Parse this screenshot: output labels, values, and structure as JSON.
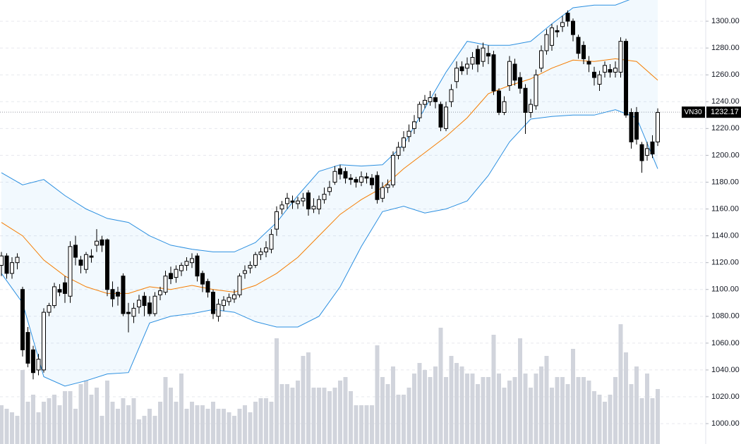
{
  "chart_data": {
    "type": "candlestick",
    "ylim": [
      984.8,
      1315.8
    ],
    "yticks": [
      {
        "value": 1000,
        "label": "1000.00"
      },
      {
        "value": 1020,
        "label": "1020.00"
      },
      {
        "value": 1040,
        "label": "1040.00"
      },
      {
        "value": 1060,
        "label": "1060.00"
      },
      {
        "value": 1080,
        "label": "1080.00"
      },
      {
        "value": 1100,
        "label": "1100.00"
      },
      {
        "value": 1120,
        "label": "1120.00"
      },
      {
        "value": 1140,
        "label": "1140.00"
      },
      {
        "value": 1160,
        "label": "1160.00"
      },
      {
        "value": 1180,
        "label": "1180.00"
      },
      {
        "value": 1200,
        "label": "1200.00"
      },
      {
        "value": 1220,
        "label": "1220.00"
      },
      {
        "value": 1240,
        "label": "1240.00"
      },
      {
        "value": 1260,
        "label": "1260.00"
      },
      {
        "value": 1280,
        "label": "1280.00"
      },
      {
        "value": 1300,
        "label": "1300.00"
      }
    ],
    "grid": true,
    "up_color": "#ffffff",
    "down_color": "#000000",
    "ohlc": [
      [
        1118,
        1128,
        1110,
        1125
      ],
      [
        1125,
        1127,
        1108,
        1112
      ],
      [
        1112,
        1124,
        1108,
        1120
      ],
      [
        1120,
        1127,
        1115,
        1124
      ],
      [
        1100,
        1102,
        1050,
        1055
      ],
      [
        1068,
        1072,
        1042,
        1045
      ],
      [
        1055,
        1058,
        1033,
        1038
      ],
      [
        1040,
        1052,
        1036,
        1048
      ],
      [
        1040,
        1086,
        1038,
        1083
      ],
      [
        1083,
        1090,
        1080,
        1088
      ],
      [
        1088,
        1105,
        1086,
        1102
      ],
      [
        1100,
        1104,
        1095,
        1098
      ],
      [
        1105,
        1110,
        1090,
        1097
      ],
      [
        1095,
        1136,
        1090,
        1132
      ],
      [
        1133,
        1140,
        1118,
        1124
      ],
      [
        1122,
        1125,
        1112,
        1118
      ],
      [
        1115,
        1128,
        1112,
        1126
      ],
      [
        1125,
        1130,
        1120,
        1124
      ],
      [
        1133,
        1145,
        1128,
        1136
      ],
      [
        1137,
        1140,
        1128,
        1133
      ],
      [
        1137,
        1138,
        1095,
        1100
      ],
      [
        1100,
        1106,
        1087,
        1093
      ],
      [
        1098,
        1102,
        1088,
        1095
      ],
      [
        1110,
        1112,
        1080,
        1082
      ],
      [
        1083,
        1090,
        1068,
        1082
      ],
      [
        1080,
        1090,
        1075,
        1086
      ],
      [
        1087,
        1096,
        1082,
        1092
      ],
      [
        1095,
        1098,
        1080,
        1088
      ],
      [
        1090,
        1095,
        1080,
        1082
      ],
      [
        1082,
        1098,
        1080,
        1095
      ],
      [
        1096,
        1102,
        1092,
        1099
      ],
      [
        1098,
        1114,
        1096,
        1110
      ],
      [
        1112,
        1117,
        1104,
        1108
      ],
      [
        1109,
        1118,
        1105,
        1115
      ],
      [
        1114,
        1120,
        1110,
        1118
      ],
      [
        1118,
        1124,
        1114,
        1121
      ],
      [
        1120,
        1127,
        1116,
        1123
      ],
      [
        1125,
        1127,
        1106,
        1110
      ],
      [
        1112,
        1114,
        1098,
        1104
      ],
      [
        1106,
        1108,
        1094,
        1098
      ],
      [
        1098,
        1100,
        1078,
        1082
      ],
      [
        1080,
        1093,
        1076,
        1089
      ],
      [
        1088,
        1095,
        1084,
        1092
      ],
      [
        1091,
        1097,
        1088,
        1094
      ],
      [
        1093,
        1100,
        1090,
        1096
      ],
      [
        1096,
        1112,
        1094,
        1110
      ],
      [
        1112,
        1118,
        1108,
        1114
      ],
      [
        1116,
        1121,
        1112,
        1118
      ],
      [
        1118,
        1128,
        1116,
        1126
      ],
      [
        1126,
        1131,
        1122,
        1128
      ],
      [
        1128,
        1136,
        1124,
        1131
      ],
      [
        1130,
        1145,
        1127,
        1141
      ],
      [
        1145,
        1162,
        1140,
        1158
      ],
      [
        1160,
        1166,
        1156,
        1163
      ],
      [
        1164,
        1172,
        1160,
        1168
      ],
      [
        1166,
        1170,
        1160,
        1165
      ],
      [
        1164,
        1169,
        1160,
        1166
      ],
      [
        1166,
        1172,
        1162,
        1168
      ],
      [
        1172,
        1174,
        1155,
        1160
      ],
      [
        1160,
        1168,
        1157,
        1162
      ],
      [
        1160,
        1170,
        1156,
        1167
      ],
      [
        1167,
        1176,
        1164,
        1171
      ],
      [
        1173,
        1181,
        1170,
        1176
      ],
      [
        1180,
        1192,
        1178,
        1188
      ],
      [
        1190,
        1193,
        1182,
        1186
      ],
      [
        1188,
        1191,
        1179,
        1183
      ],
      [
        1183,
        1186,
        1178,
        1182
      ],
      [
        1182,
        1184,
        1176,
        1180
      ],
      [
        1180,
        1188,
        1177,
        1184
      ],
      [
        1184,
        1187,
        1179,
        1183
      ],
      [
        1183,
        1186,
        1175,
        1178
      ],
      [
        1185,
        1188,
        1164,
        1167
      ],
      [
        1168,
        1180,
        1165,
        1176
      ],
      [
        1176,
        1182,
        1172,
        1178
      ],
      [
        1178,
        1203,
        1176,
        1200
      ],
      [
        1200,
        1210,
        1197,
        1206
      ],
      [
        1206,
        1218,
        1203,
        1213
      ],
      [
        1214,
        1223,
        1210,
        1218
      ],
      [
        1220,
        1230,
        1216,
        1225
      ],
      [
        1228,
        1240,
        1225,
        1238
      ],
      [
        1238,
        1245,
        1235,
        1241
      ],
      [
        1240,
        1248,
        1237,
        1243
      ],
      [
        1243,
        1246,
        1235,
        1240
      ],
      [
        1238,
        1240,
        1218,
        1221
      ],
      [
        1220,
        1240,
        1218,
        1236
      ],
      [
        1240,
        1253,
        1236,
        1249
      ],
      [
        1255,
        1270,
        1250,
        1265
      ],
      [
        1266,
        1270,
        1260,
        1263
      ],
      [
        1265,
        1273,
        1260,
        1268
      ],
      [
        1268,
        1277,
        1264,
        1273
      ],
      [
        1279,
        1282,
        1262,
        1268
      ],
      [
        1270,
        1284,
        1266,
        1280
      ],
      [
        1276,
        1282,
        1268,
        1274
      ],
      [
        1275,
        1278,
        1245,
        1248
      ],
      [
        1248,
        1250,
        1230,
        1232
      ],
      [
        1232,
        1244,
        1230,
        1240
      ],
      [
        1252,
        1274,
        1248,
        1270
      ],
      [
        1268,
        1272,
        1252,
        1256
      ],
      [
        1258,
        1262,
        1246,
        1250
      ],
      [
        1250,
        1253,
        1216,
        1232
      ],
      [
        1232,
        1242,
        1228,
        1238
      ],
      [
        1237,
        1264,
        1234,
        1260
      ],
      [
        1265,
        1282,
        1262,
        1278
      ],
      [
        1278,
        1294,
        1275,
        1290
      ],
      [
        1282,
        1298,
        1278,
        1295
      ],
      [
        1293,
        1297,
        1288,
        1292
      ],
      [
        1296,
        1304,
        1292,
        1299
      ],
      [
        1306,
        1308,
        1296,
        1300
      ],
      [
        1300,
        1302,
        1285,
        1290
      ],
      [
        1288,
        1290,
        1272,
        1276
      ],
      [
        1282,
        1285,
        1268,
        1272
      ],
      [
        1270,
        1274,
        1262,
        1268
      ],
      [
        1262,
        1266,
        1252,
        1258
      ],
      [
        1253,
        1263,
        1248,
        1260
      ],
      [
        1262,
        1270,
        1258,
        1267
      ],
      [
        1264,
        1268,
        1258,
        1262
      ],
      [
        1262,
        1270,
        1258,
        1265
      ],
      [
        1262,
        1288,
        1258,
        1285
      ],
      [
        1285,
        1287,
        1228,
        1230
      ],
      [
        1232,
        1235,
        1205,
        1210
      ],
      [
        1232,
        1236,
        1208,
        1212
      ],
      [
        1208,
        1210,
        1187,
        1196
      ],
      [
        1200,
        1210,
        1196,
        1205
      ],
      [
        1210,
        1215,
        1198,
        1201
      ],
      [
        1210,
        1235,
        1207,
        1232
      ]
    ],
    "volume": {
      "color": "#d1d4dc",
      "y2lim": [
        0,
        630
      ],
      "values": [
        55,
        50,
        45,
        40,
        105,
        60,
        70,
        45,
        60,
        65,
        70,
        55,
        75,
        75,
        50,
        85,
        90,
        70,
        80,
        40,
        90,
        60,
        50,
        65,
        55,
        65,
        35,
        40,
        50,
        40,
        60,
        95,
        80,
        60,
        100,
        50,
        60,
        55,
        55,
        50,
        60,
        50,
        50,
        45,
        40,
        50,
        55,
        45,
        60,
        65,
        65,
        60,
        150,
        85,
        85,
        80,
        90,
        125,
        130,
        80,
        80,
        80,
        75,
        80,
        90,
        95,
        75,
        55,
        55,
        55,
        55,
        140,
        95,
        85,
        110,
        70,
        70,
        80,
        100,
        115,
        105,
        95,
        110,
        165,
        95,
        125,
        115,
        110,
        100,
        100,
        85,
        95,
        95,
        155,
        100,
        80,
        90,
        95,
        150,
        100,
        80,
        100,
        110,
        125,
        80,
        95,
        95,
        85,
        135,
        95,
        95,
        90,
        75,
        70,
        60,
        70,
        95,
        170,
        130,
        85,
        110,
        65,
        100,
        65,
        78
      ]
    },
    "bands": {
      "fill": "rgba(33,150,243,0.06)",
      "band_color": "#2b8fe0",
      "middle_color": "#f57c00",
      "x": [
        0,
        4,
        8,
        12,
        16,
        20,
        24,
        28,
        32,
        36,
        40,
        44,
        48,
        52,
        56,
        60,
        64,
        68,
        72,
        76,
        80,
        84,
        88,
        92,
        96,
        100,
        104,
        108,
        112,
        116,
        120,
        124
      ],
      "upper": [
        1187,
        1178,
        1182,
        1170,
        1160,
        1153,
        1150,
        1140,
        1133,
        1130,
        1128,
        1128,
        1135,
        1150,
        1170,
        1188,
        1193,
        1192,
        1193,
        1208,
        1235,
        1262,
        1285,
        1282,
        1282,
        1285,
        1298,
        1310,
        1312,
        1312,
        1318,
        1326
      ],
      "middle": [
        1150,
        1140,
        1122,
        1110,
        1102,
        1097,
        1097,
        1102,
        1100,
        1103,
        1100,
        1098,
        1103,
        1112,
        1124,
        1140,
        1156,
        1167,
        1176,
        1190,
        1202,
        1214,
        1228,
        1246,
        1252,
        1257,
        1265,
        1271,
        1270,
        1272,
        1270,
        1256
      ],
      "lower": [
        1112,
        1090,
        1035,
        1028,
        1032,
        1037,
        1038,
        1075,
        1080,
        1082,
        1085,
        1083,
        1076,
        1072,
        1072,
        1080,
        1102,
        1132,
        1158,
        1162,
        1157,
        1160,
        1166,
        1185,
        1210,
        1227,
        1229,
        1230,
        1230,
        1234,
        1228,
        1190
      ]
    },
    "last_price": {
      "label": "VN30",
      "value": 1232.17
    }
  }
}
